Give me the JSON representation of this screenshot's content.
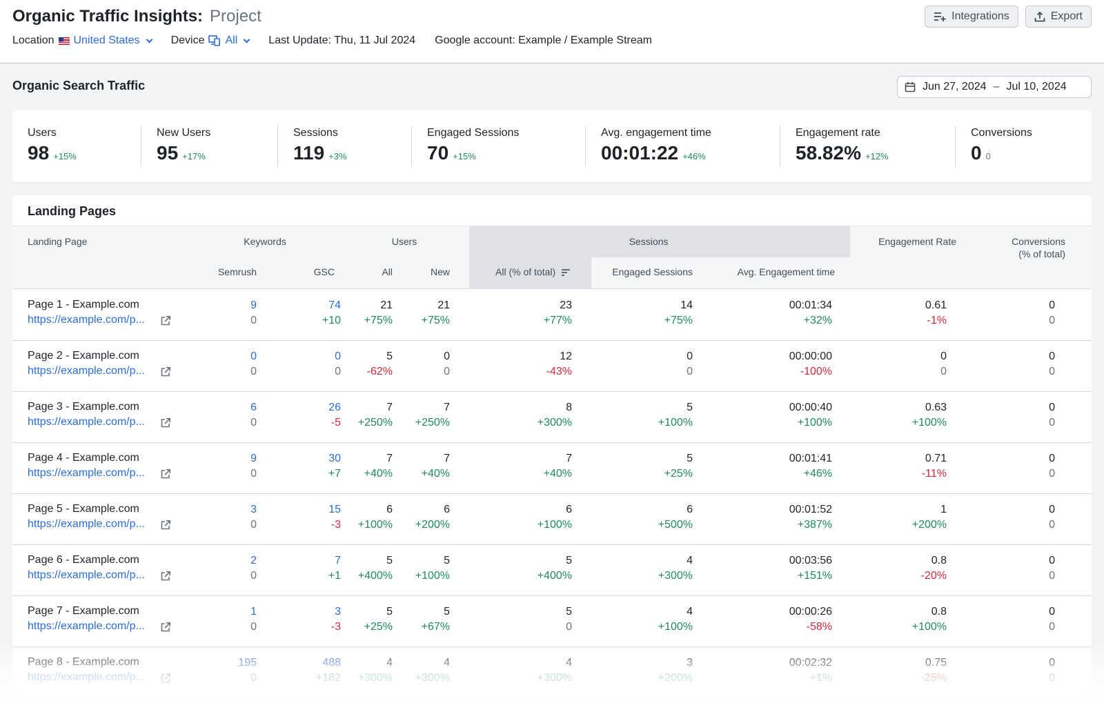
{
  "header": {
    "title": "Organic Traffic Insights:",
    "project": "Project",
    "location_label": "Location",
    "location_value": "United States",
    "device_label": "Device",
    "device_value": "All",
    "last_update": "Last Update: Thu, 11 Jul 2024",
    "google_account": "Google account: Example / Example Stream",
    "integrations_label": "Integrations",
    "export_label": "Export"
  },
  "section": {
    "title": "Organic Search Traffic",
    "date_from": "Jun 27, 2024",
    "date_sep": "–",
    "date_to": "Jul 10, 2024"
  },
  "metrics": [
    {
      "label": "Users",
      "value": "98",
      "delta": "+15%"
    },
    {
      "label": "New Users",
      "value": "95",
      "delta": "+17%"
    },
    {
      "label": "Sessions",
      "value": "119",
      "delta": "+3%"
    },
    {
      "label": "Engaged Sessions",
      "value": "70",
      "delta": "+15%"
    },
    {
      "label": "Avg. engagement time",
      "value": "00:01:22",
      "delta": "+46%"
    },
    {
      "label": "Engagement rate",
      "value": "58.82%",
      "delta": "+12%"
    },
    {
      "label": "Conversions",
      "value": "0",
      "delta": "0"
    }
  ],
  "landing": {
    "title": "Landing Pages",
    "headers": {
      "landing_page": "Landing Page",
      "keywords": "Keywords",
      "users": "Users",
      "sessions": "Sessions",
      "engagement_rate": "Engagement Rate",
      "conversions_1": "Conversions",
      "conversions_2": "(% of total)",
      "semrush": "Semrush",
      "gsc": "GSC",
      "all": "All",
      "new": "New",
      "sessions_all": "All (% of total)",
      "engaged_sessions": "Engaged Sessions",
      "avg_time": "Avg. Engagement time"
    },
    "rows": [
      {
        "name": "Page 1 - Example.com",
        "url": "https://example.com/p...",
        "semrush": "9",
        "semrush_d": "0",
        "gsc": "74",
        "gsc_d": "+10",
        "all": "21",
        "all_d": "+75%",
        "new": "21",
        "new_d": "+75%",
        "sess": "23",
        "sess_d": "+77%",
        "eng": "14",
        "eng_d": "+75%",
        "time": "00:01:34",
        "time_d": "+32%",
        "rate": "0.61",
        "rate_d": "-1%",
        "conv": "0",
        "conv_d": "0"
      },
      {
        "name": "Page 2 - Example.com",
        "url": "https://example.com/p...",
        "semrush": "0",
        "semrush_d": "0",
        "gsc": "0",
        "gsc_d": "0",
        "all": "5",
        "all_d": "-62%",
        "new": "0",
        "new_d": "0",
        "sess": "12",
        "sess_d": "-43%",
        "eng": "0",
        "eng_d": "0",
        "time": "00:00:00",
        "time_d": "-100%",
        "rate": "0",
        "rate_d": "0",
        "conv": "0",
        "conv_d": "0"
      },
      {
        "name": "Page 3 - Example.com",
        "url": "https://example.com/p...",
        "semrush": "6",
        "semrush_d": "0",
        "gsc": "26",
        "gsc_d": "-5",
        "all": "7",
        "all_d": "+250%",
        "new": "7",
        "new_d": "+250%",
        "sess": "8",
        "sess_d": "+300%",
        "eng": "5",
        "eng_d": "+100%",
        "time": "00:00:40",
        "time_d": "+100%",
        "rate": "0.63",
        "rate_d": "+100%",
        "conv": "0",
        "conv_d": "0"
      },
      {
        "name": "Page 4 - Example.com",
        "url": "https://example.com/p...",
        "semrush": "9",
        "semrush_d": "0",
        "gsc": "30",
        "gsc_d": "+7",
        "all": "7",
        "all_d": "+40%",
        "new": "7",
        "new_d": "+40%",
        "sess": "7",
        "sess_d": "+40%",
        "eng": "5",
        "eng_d": "+25%",
        "time": "00:01:41",
        "time_d": "+46%",
        "rate": "0.71",
        "rate_d": "-11%",
        "conv": "0",
        "conv_d": "0"
      },
      {
        "name": "Page 5 - Example.com",
        "url": "https://example.com/p...",
        "semrush": "3",
        "semrush_d": "0",
        "gsc": "15",
        "gsc_d": "-3",
        "all": "6",
        "all_d": "+100%",
        "new": "6",
        "new_d": "+200%",
        "sess": "6",
        "sess_d": "+100%",
        "eng": "6",
        "eng_d": "+500%",
        "time": "00:01:52",
        "time_d": "+387%",
        "rate": "1",
        "rate_d": "+200%",
        "conv": "0",
        "conv_d": "0"
      },
      {
        "name": "Page 6 - Example.com",
        "url": "https://example.com/p...",
        "semrush": "2",
        "semrush_d": "0",
        "gsc": "7",
        "gsc_d": "+1",
        "all": "5",
        "all_d": "+400%",
        "new": "5",
        "new_d": "+100%",
        "sess": "5",
        "sess_d": "+400%",
        "eng": "4",
        "eng_d": "+300%",
        "time": "00:03:56",
        "time_d": "+151%",
        "rate": "0.8",
        "rate_d": "-20%",
        "conv": "0",
        "conv_d": "0"
      },
      {
        "name": "Page 7 - Example.com",
        "url": "https://example.com/p...",
        "semrush": "1",
        "semrush_d": "0",
        "gsc": "3",
        "gsc_d": "-3",
        "all": "5",
        "all_d": "+25%",
        "new": "5",
        "new_d": "+67%",
        "sess": "5",
        "sess_d": "0",
        "eng": "4",
        "eng_d": "+100%",
        "time": "00:00:26",
        "time_d": "-58%",
        "rate": "0.8",
        "rate_d": "+100%",
        "conv": "0",
        "conv_d": "0"
      },
      {
        "name": "Page 8 - Example.com",
        "url": "https://example.com/p...",
        "semrush": "195",
        "semrush_d": "0",
        "gsc": "488",
        "gsc_d": "+182",
        "all": "4",
        "all_d": "+300%",
        "new": "4",
        "new_d": "+300%",
        "sess": "4",
        "sess_d": "+300%",
        "eng": "3",
        "eng_d": "+200%",
        "time": "00:02:32",
        "time_d": "+1%",
        "rate": "0.75",
        "rate_d": "-25%",
        "conv": "0",
        "conv_d": "0"
      }
    ]
  },
  "colors": {
    "accent": "#2b6cd4",
    "positive": "#1f8a5b",
    "negative": "#d1293d",
    "muted": "#6c727f"
  }
}
